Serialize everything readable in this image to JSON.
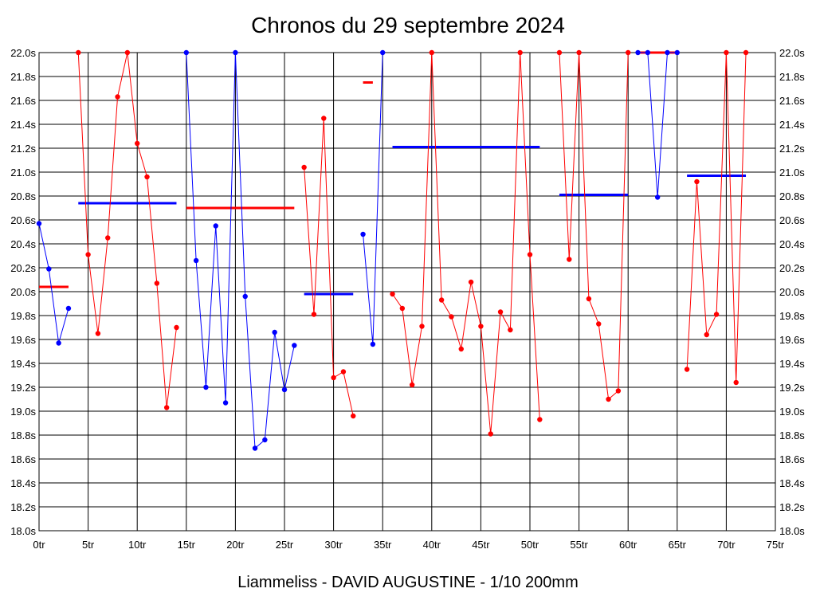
{
  "chart_data": {
    "type": "line",
    "title": "Chronos du 29 septembre 2024",
    "footer": "Liammeliss - DAVID AUGUSTINE - 1/10 200mm",
    "xlabel": "",
    "ylabel": "",
    "xlim": [
      0,
      75
    ],
    "ylim": [
      18.0,
      22.0
    ],
    "grid": true,
    "x_ticks": [
      0,
      5,
      10,
      15,
      20,
      25,
      30,
      35,
      40,
      45,
      50,
      55,
      60,
      65,
      70,
      75
    ],
    "x_tick_labels": [
      "0tr",
      "5tr",
      "10tr",
      "15tr",
      "20tr",
      "25tr",
      "30tr",
      "35tr",
      "40tr",
      "45tr",
      "50tr",
      "55tr",
      "60tr",
      "65tr",
      "70tr",
      "75tr"
    ],
    "y_ticks": [
      18.0,
      18.2,
      18.4,
      18.6,
      18.8,
      19.0,
      19.2,
      19.4,
      19.6,
      19.8,
      20.0,
      20.2,
      20.4,
      20.6,
      20.8,
      21.0,
      21.2,
      21.4,
      21.6,
      21.8,
      22.0
    ],
    "y_tick_labels": [
      "18.0s",
      "18.2s",
      "18.4s",
      "18.6s",
      "18.8s",
      "19.0s",
      "19.2s",
      "19.4s",
      "19.6s",
      "19.8s",
      "20.0s",
      "20.2s",
      "20.4s",
      "20.6s",
      "20.8s",
      "21.0s",
      "21.2s",
      "21.4s",
      "21.6s",
      "21.8s",
      "22.0s"
    ],
    "series": [
      {
        "color": "#0000ff",
        "x": [
          0,
          1,
          2,
          3
        ],
        "y": [
          20.57,
          20.19,
          19.57,
          19.86
        ],
        "avg": 20.04,
        "avg_color": "#ff0000",
        "avg_range": [
          0,
          3
        ]
      },
      {
        "color": "#ff0000",
        "x": [
          4,
          5,
          6,
          7,
          8,
          9,
          10,
          11,
          12,
          13,
          14
        ],
        "y": [
          22.0,
          20.31,
          19.65,
          20.45,
          21.63,
          22.0,
          21.24,
          20.96,
          20.07,
          19.03,
          19.7
        ],
        "avg": 20.74,
        "avg_color": "#0000ff",
        "avg_range": [
          4,
          14
        ]
      },
      {
        "color": "#0000ff",
        "x": [
          15,
          16,
          17,
          18,
          19,
          20,
          21,
          22,
          23,
          24,
          25,
          26
        ],
        "y": [
          22.0,
          20.26,
          19.2,
          20.55,
          19.07,
          22.0,
          19.96,
          18.69,
          18.76,
          19.66,
          19.18,
          19.55
        ],
        "avg": 20.7,
        "avg_color": "#ff0000",
        "avg_range": [
          15,
          26
        ]
      },
      {
        "color": "#ff0000",
        "x": [
          27,
          28,
          29,
          30,
          31,
          32
        ],
        "y": [
          21.04,
          19.81,
          21.45,
          19.28,
          19.33,
          18.96
        ],
        "avg": 19.98,
        "avg_color": "#0000ff",
        "avg_range": [
          27,
          32
        ]
      },
      {
        "color": "#0000ff",
        "x": [
          33,
          34,
          35
        ],
        "y": [
          20.48,
          19.56,
          22.0
        ],
        "avg": 21.75,
        "avg_color": "#ff0000",
        "avg_range": [
          33,
          34
        ]
      },
      {
        "color": "#ff0000",
        "x": [
          36,
          37,
          38,
          39,
          40,
          41,
          42,
          43,
          44,
          45,
          46,
          47,
          48,
          49,
          50,
          51
        ],
        "y": [
          19.98,
          19.86,
          19.22,
          19.71,
          22.0,
          19.93,
          19.79,
          19.52,
          20.08,
          19.71,
          18.81,
          19.83,
          19.68,
          22.0,
          20.31,
          18.93
        ],
        "avg": 21.21,
        "avg_color": "#0000ff",
        "avg_range": [
          36,
          51
        ]
      },
      {
        "color": "#ff0000",
        "x": [
          53,
          54,
          55,
          56,
          57,
          58,
          59,
          60
        ],
        "y": [
          22.0,
          20.27,
          22.0,
          19.94,
          19.73,
          19.1,
          19.17,
          22.0
        ],
        "avg": 20.81,
        "avg_color": "#0000ff",
        "avg_range": [
          53,
          60
        ]
      },
      {
        "color": "#0000ff",
        "x": [
          61,
          62,
          63,
          64,
          65
        ],
        "y": [
          22.0,
          22.0,
          20.79,
          22.0,
          22.0
        ],
        "avg": 22.0,
        "avg_color": "#ff0000",
        "avg_range": [
          61,
          65
        ]
      },
      {
        "color": "#ff0000",
        "x": [
          66,
          67,
          68,
          69,
          70,
          71,
          72
        ],
        "y": [
          19.35,
          20.92,
          19.64,
          19.81,
          22.0,
          19.24,
          22.0
        ],
        "avg": 20.97,
        "avg_color": "#0000ff",
        "avg_range": [
          66,
          72
        ]
      }
    ]
  }
}
